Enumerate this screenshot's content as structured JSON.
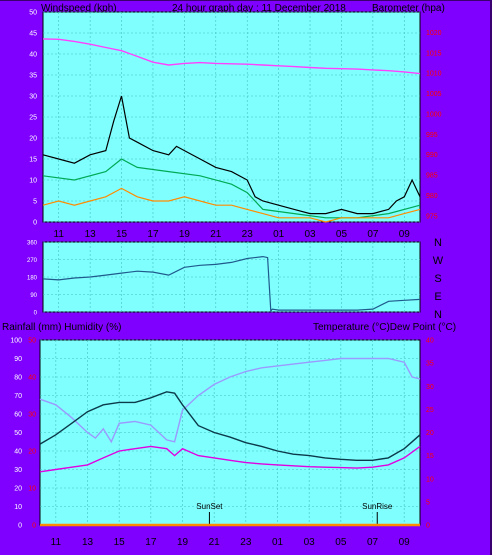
{
  "colors": {
    "background": "#7f00ff",
    "plot_bg": "#80ffff",
    "grid": "#40c0c0",
    "white": "#ffffff",
    "red_axis": "#ff0000"
  },
  "header": {
    "left": "Windspeed (kph)",
    "center": "24 hour graph day : 11 December 2018",
    "right": "Barometer (hpa)"
  },
  "wind_dir_labels": [
    "N",
    "W",
    "S",
    "E",
    "N"
  ],
  "lower_header": {
    "left": "Rainfall (mm)  Humidity (%)",
    "right": "Temperature (°C)Dew Point (°C)"
  },
  "markers": {
    "sunset": "SunSet",
    "sunrise": "SunRise"
  },
  "chart_data": [
    {
      "type": "line",
      "title": "24 hour graph day : 11 December 2018",
      "ylabel": "Windspeed (kph)",
      "y2label": "Barometer (hpa)",
      "x_ticks": [
        "11",
        "13",
        "15",
        "17",
        "19",
        "21",
        "23",
        "01",
        "03",
        "05",
        "07",
        "09"
      ],
      "y_ticks": [
        0,
        5,
        10,
        15,
        20,
        25,
        30,
        35,
        40,
        45,
        50
      ],
      "y2_ticks": [
        975,
        980,
        985,
        990,
        995,
        1000,
        1005,
        1010,
        1015,
        1020
      ],
      "ylim": [
        0,
        50
      ],
      "y2lim": [
        973.5,
        1025
      ],
      "x_hours": [
        10,
        34
      ],
      "series": [
        {
          "name": "Barometer (hpa)",
          "color": "#ff40ff",
          "axis": "right",
          "x": [
            10,
            11,
            12,
            13,
            14,
            15,
            16,
            17,
            18,
            19,
            20,
            21,
            22,
            23,
            24,
            25,
            26,
            27,
            28,
            29,
            30,
            31,
            32,
            33,
            34
          ],
          "y": [
            1018.4,
            1018.3,
            1017.8,
            1017.1,
            1016.3,
            1015.5,
            1014.1,
            1012.7,
            1012.0,
            1012.4,
            1012.6,
            1012.4,
            1012.3,
            1012.2,
            1012.0,
            1011.8,
            1011.6,
            1011.4,
            1011.2,
            1011.1,
            1011.0,
            1010.8,
            1010.6,
            1010.3,
            1009.9
          ]
        },
        {
          "name": "Wind gust",
          "color": "#000000",
          "axis": "left",
          "x": [
            10,
            11,
            12,
            13,
            14,
            14.5,
            15,
            15.5,
            16,
            17,
            18,
            18.5,
            19,
            20,
            21,
            22,
            23,
            23.5,
            24,
            25,
            26,
            27,
            28,
            29,
            30,
            31,
            32,
            32.5,
            33,
            33.5,
            34
          ],
          "y": [
            16,
            15,
            14,
            16,
            17,
            24,
            30,
            20,
            19,
            17,
            16,
            18,
            17,
            15,
            13,
            12,
            10,
            6,
            5,
            4,
            3,
            2,
            2,
            3,
            2,
            2,
            3,
            5,
            6,
            10,
            6
          ]
        },
        {
          "name": "Wind average",
          "color": "#00aa55",
          "axis": "left",
          "x": [
            10,
            12,
            14,
            15,
            16,
            18,
            20,
            22,
            23,
            24,
            26,
            28,
            30,
            32,
            34
          ],
          "y": [
            11,
            10,
            12,
            15,
            13,
            12,
            11,
            9,
            7,
            3,
            2,
            1,
            1,
            2,
            4
          ]
        },
        {
          "name": "Wind speed",
          "color": "#ff8c00",
          "axis": "left",
          "x": [
            10,
            11,
            12,
            13,
            14,
            15,
            16,
            17,
            18,
            19,
            20,
            21,
            22,
            23,
            24,
            25,
            26,
            27,
            28,
            29,
            30,
            31,
            32,
            33,
            34
          ],
          "y": [
            4,
            5,
            4,
            5,
            6,
            8,
            6,
            5,
            5,
            6,
            5,
            4,
            4,
            3,
            2,
            1,
            1,
            1,
            0,
            1,
            1,
            1,
            1,
            2,
            3
          ]
        }
      ]
    },
    {
      "type": "line",
      "title": "",
      "y2_ticks": [
        "N",
        "W",
        "S",
        "E",
        "N"
      ],
      "y_ticks": [
        0,
        90,
        180,
        270,
        360
      ],
      "ylim": [
        0,
        360
      ],
      "x_hours": [
        10,
        34
      ],
      "series": [
        {
          "name": "Wind direction",
          "color": "#1f5a8c",
          "x": [
            10,
            11,
            12,
            13,
            14,
            15,
            16,
            17,
            18,
            19,
            20,
            21,
            22,
            23,
            24,
            24.3,
            24.5,
            24.6,
            25,
            28,
            30,
            31,
            32,
            33,
            34
          ],
          "y": [
            170,
            165,
            175,
            180,
            190,
            200,
            210,
            205,
            190,
            230,
            240,
            245,
            255,
            275,
            285,
            280,
            5,
            15,
            10,
            10,
            10,
            15,
            55,
            60,
            65
          ]
        }
      ]
    },
    {
      "type": "line",
      "title": "",
      "y_ticks": [
        0,
        10,
        20,
        30,
        40,
        50,
        60,
        70,
        80,
        90,
        100
      ],
      "rain_ticks": [
        0,
        10,
        20,
        30,
        40,
        50
      ],
      "y2_ticks": [
        0,
        5,
        10,
        15,
        20,
        25,
        30,
        35,
        40
      ],
      "ylim": [
        0,
        100
      ],
      "y2lim": [
        0,
        40
      ],
      "x_ticks": [
        "11",
        "13",
        "15",
        "17",
        "19",
        "21",
        "23",
        "01",
        "03",
        "05",
        "07",
        "09"
      ],
      "x_hours": [
        10,
        34
      ],
      "series": [
        {
          "name": "Humidity (%)",
          "color": "#9a9aff",
          "axis": "left",
          "x": [
            10,
            11,
            12,
            13,
            13.5,
            14,
            14.5,
            15,
            16,
            17,
            18,
            18.5,
            19,
            20,
            21,
            22,
            23,
            24,
            25,
            26,
            27,
            28,
            29,
            30,
            31,
            32,
            33,
            33.5,
            34
          ],
          "y": [
            68,
            65,
            58,
            50,
            47,
            52,
            45,
            55,
            56,
            54,
            46,
            45,
            62,
            70,
            76,
            80,
            83,
            85,
            86,
            87,
            88,
            89,
            90,
            90,
            90,
            90,
            88,
            80,
            79
          ]
        },
        {
          "name": "Temperature (°C)",
          "color": "#0b3a4a",
          "axis": "right",
          "x": [
            10,
            11,
            12,
            13,
            14,
            15,
            16,
            17,
            18,
            18.5,
            19,
            20,
            21,
            22,
            23,
            24,
            25,
            26,
            27,
            28,
            29,
            30,
            31,
            32,
            33,
            33.5,
            34
          ],
          "y": [
            17.5,
            19.5,
            22,
            24.5,
            26,
            26.5,
            26.5,
            27.5,
            28.8,
            28.5,
            26,
            21.5,
            20,
            19,
            17.8,
            17,
            16,
            15.3,
            15,
            14.5,
            14.2,
            14,
            14,
            14.5,
            16.5,
            18,
            19.5
          ]
        },
        {
          "name": "Dew Point (°C)",
          "color": "#e000e0",
          "axis": "right",
          "x": [
            10,
            11,
            12,
            13,
            14,
            15,
            16,
            17,
            18,
            18.5,
            19,
            20,
            21,
            22,
            23,
            24,
            25,
            26,
            27,
            28,
            29,
            30,
            31,
            32,
            33,
            34
          ],
          "y": [
            11.5,
            12,
            12.5,
            13,
            14.5,
            16,
            16.5,
            17,
            16.5,
            15,
            16.5,
            15,
            14.5,
            14,
            13.5,
            13.2,
            13,
            12.8,
            12.6,
            12.5,
            12.4,
            12.3,
            12.5,
            13,
            14.5,
            17
          ]
        },
        {
          "name": "Rainfall (mm)",
          "color": "#ff8c00",
          "axis": "rain",
          "x": [
            10,
            34
          ],
          "y": [
            0,
            0
          ]
        }
      ]
    }
  ]
}
